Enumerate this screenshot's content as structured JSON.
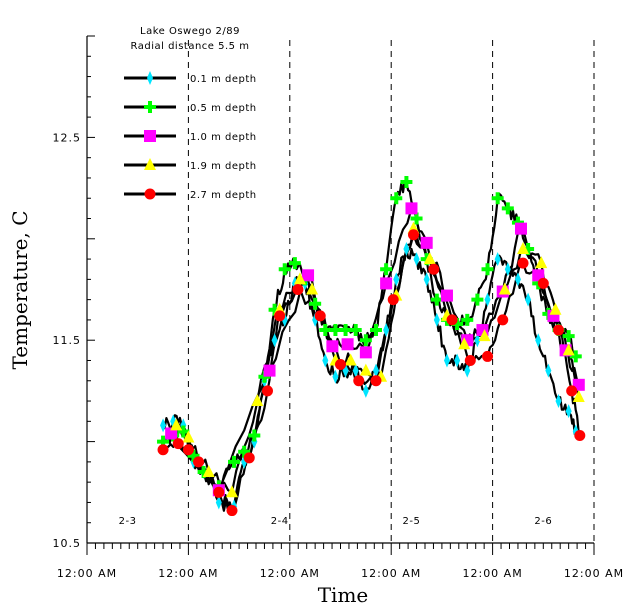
{
  "chart_data": {
    "type": "line",
    "title": "Lake Oswego 2/89",
    "subtitle": "Radial distance 5.5 m",
    "xlabel": "Time",
    "ylabel": "Temperature, C",
    "ylim": [
      10.5,
      13.0
    ],
    "xlim_days": [
      0,
      5
    ],
    "y_tick_labels": [
      "10.5",
      "11.5",
      "12.5"
    ],
    "y_tick_values": [
      10.5,
      11.5,
      12.5
    ],
    "x_tick_labels": [
      "12:00 AM",
      "12:00 AM",
      "12:00 AM",
      "12:00 AM",
      "12:00 AM",
      "12:00 AM"
    ],
    "x_tick_values": [
      0,
      1,
      2,
      3,
      4,
      5
    ],
    "day_labels": [
      {
        "text": "2-3",
        "x": 0.4
      },
      {
        "text": "2-4",
        "x": 1.9
      },
      {
        "text": "2-5",
        "x": 3.2
      },
      {
        "text": "2-6",
        "x": 4.5
      }
    ],
    "grid": "vertical dashed at day boundaries",
    "legend_position": "top-left",
    "series": [
      {
        "name": "0.1 m depth",
        "marker": "diamond",
        "color": "#00e5ff",
        "points": [
          [
            0.75,
            11.08
          ],
          [
            0.85,
            11.1
          ],
          [
            0.95,
            11.08
          ],
          [
            1.05,
            10.9
          ],
          [
            1.15,
            10.85
          ],
          [
            1.3,
            10.7
          ],
          [
            1.45,
            10.68
          ],
          [
            1.55,
            10.9
          ],
          [
            1.65,
            11.0
          ],
          [
            1.75,
            11.3
          ],
          [
            1.85,
            11.5
          ],
          [
            1.95,
            11.6
          ],
          [
            2.05,
            11.78
          ],
          [
            2.15,
            11.78
          ],
          [
            2.25,
            11.6
          ],
          [
            2.35,
            11.4
          ],
          [
            2.45,
            11.32
          ],
          [
            2.55,
            11.35
          ],
          [
            2.65,
            11.35
          ],
          [
            2.75,
            11.25
          ],
          [
            2.85,
            11.35
          ],
          [
            2.95,
            11.55
          ],
          [
            3.05,
            11.8
          ],
          [
            3.15,
            11.95
          ],
          [
            3.25,
            11.9
          ],
          [
            3.35,
            11.8
          ],
          [
            3.45,
            11.6
          ],
          [
            3.55,
            11.4
          ],
          [
            3.65,
            11.4
          ],
          [
            3.75,
            11.35
          ],
          [
            3.85,
            11.5
          ],
          [
            3.95,
            11.7
          ],
          [
            4.05,
            11.9
          ],
          [
            4.15,
            11.85
          ],
          [
            4.25,
            11.8
          ],
          [
            4.35,
            11.7
          ],
          [
            4.45,
            11.5
          ],
          [
            4.55,
            11.35
          ],
          [
            4.65,
            11.2
          ],
          [
            4.75,
            11.15
          ],
          [
            4.82,
            11.05
          ]
        ]
      },
      {
        "name": "0.5 m depth",
        "marker": "plus",
        "color": "#00ff00",
        "points": [
          [
            0.75,
            11.0
          ],
          [
            0.85,
            11.03
          ],
          [
            0.95,
            11.05
          ],
          [
            1.05,
            10.93
          ],
          [
            1.15,
            10.85
          ],
          [
            1.3,
            10.78
          ],
          [
            1.45,
            10.9
          ],
          [
            1.55,
            10.95
          ],
          [
            1.65,
            11.03
          ],
          [
            1.75,
            11.32
          ],
          [
            1.85,
            11.65
          ],
          [
            1.95,
            11.85
          ],
          [
            2.05,
            11.88
          ],
          [
            2.15,
            11.8
          ],
          [
            2.25,
            11.68
          ],
          [
            2.35,
            11.55
          ],
          [
            2.45,
            11.55
          ],
          [
            2.55,
            11.55
          ],
          [
            2.65,
            11.55
          ],
          [
            2.75,
            11.5
          ],
          [
            2.85,
            11.55
          ],
          [
            2.95,
            11.85
          ],
          [
            3.05,
            12.2
          ],
          [
            3.15,
            12.28
          ],
          [
            3.25,
            12.1
          ],
          [
            3.35,
            11.9
          ],
          [
            3.45,
            11.7
          ],
          [
            3.55,
            11.6
          ],
          [
            3.65,
            11.58
          ],
          [
            3.75,
            11.6
          ],
          [
            3.85,
            11.7
          ],
          [
            3.95,
            11.85
          ],
          [
            4.05,
            12.2
          ],
          [
            4.15,
            12.15
          ],
          [
            4.25,
            12.08
          ],
          [
            4.35,
            11.95
          ],
          [
            4.45,
            11.78
          ],
          [
            4.55,
            11.63
          ],
          [
            4.65,
            11.55
          ],
          [
            4.75,
            11.52
          ],
          [
            4.82,
            11.42
          ]
        ]
      },
      {
        "name": "1.0 m depth",
        "marker": "square",
        "color": "#ff00ff",
        "points": [
          [
            0.83,
            11.04
          ],
          [
            1.3,
            10.76
          ],
          [
            1.8,
            11.35
          ],
          [
            2.18,
            11.82
          ],
          [
            2.42,
            11.47
          ],
          [
            2.57,
            11.48
          ],
          [
            2.75,
            11.44
          ],
          [
            2.95,
            11.78
          ],
          [
            3.2,
            12.15
          ],
          [
            3.35,
            11.98
          ],
          [
            3.55,
            11.72
          ],
          [
            3.75,
            11.5
          ],
          [
            3.9,
            11.55
          ],
          [
            4.1,
            11.74
          ],
          [
            4.28,
            12.05
          ],
          [
            4.45,
            11.82
          ],
          [
            4.6,
            11.62
          ],
          [
            4.72,
            11.45
          ],
          [
            4.85,
            11.28
          ]
        ]
      },
      {
        "name": "1.9 m depth",
        "marker": "triangle",
        "color": "#ffff00",
        "points": [
          [
            0.88,
            11.08
          ],
          [
            1.0,
            11.02
          ],
          [
            1.2,
            10.85
          ],
          [
            1.43,
            10.75
          ],
          [
            1.68,
            11.2
          ],
          [
            1.9,
            11.65
          ],
          [
            2.1,
            11.8
          ],
          [
            2.22,
            11.75
          ],
          [
            2.45,
            11.4
          ],
          [
            2.6,
            11.4
          ],
          [
            2.75,
            11.35
          ],
          [
            2.9,
            11.32
          ],
          [
            3.05,
            11.72
          ],
          [
            3.22,
            12.05
          ],
          [
            3.38,
            11.9
          ],
          [
            3.55,
            11.62
          ],
          [
            3.72,
            11.48
          ],
          [
            3.92,
            11.52
          ],
          [
            4.12,
            11.75
          ],
          [
            4.3,
            11.95
          ],
          [
            4.48,
            11.88
          ],
          [
            4.62,
            11.65
          ],
          [
            4.75,
            11.45
          ],
          [
            4.85,
            11.22
          ]
        ]
      },
      {
        "name": "2.7 m depth",
        "marker": "circle",
        "color": "#ff0000",
        "points": [
          [
            0.75,
            10.96
          ],
          [
            0.9,
            10.99
          ],
          [
            1.0,
            10.96
          ],
          [
            1.1,
            10.9
          ],
          [
            1.3,
            10.75
          ],
          [
            1.43,
            10.66
          ],
          [
            1.6,
            10.92
          ],
          [
            1.78,
            11.25
          ],
          [
            1.9,
            11.62
          ],
          [
            2.08,
            11.75
          ],
          [
            2.3,
            11.62
          ],
          [
            2.5,
            11.38
          ],
          [
            2.68,
            11.3
          ],
          [
            2.85,
            11.3
          ],
          [
            3.02,
            11.7
          ],
          [
            3.22,
            12.02
          ],
          [
            3.42,
            11.85
          ],
          [
            3.6,
            11.6
          ],
          [
            3.78,
            11.4
          ],
          [
            3.95,
            11.42
          ],
          [
            4.1,
            11.6
          ],
          [
            4.3,
            11.88
          ],
          [
            4.5,
            11.78
          ],
          [
            4.65,
            11.55
          ],
          [
            4.78,
            11.25
          ],
          [
            4.86,
            11.03
          ]
        ]
      }
    ]
  }
}
